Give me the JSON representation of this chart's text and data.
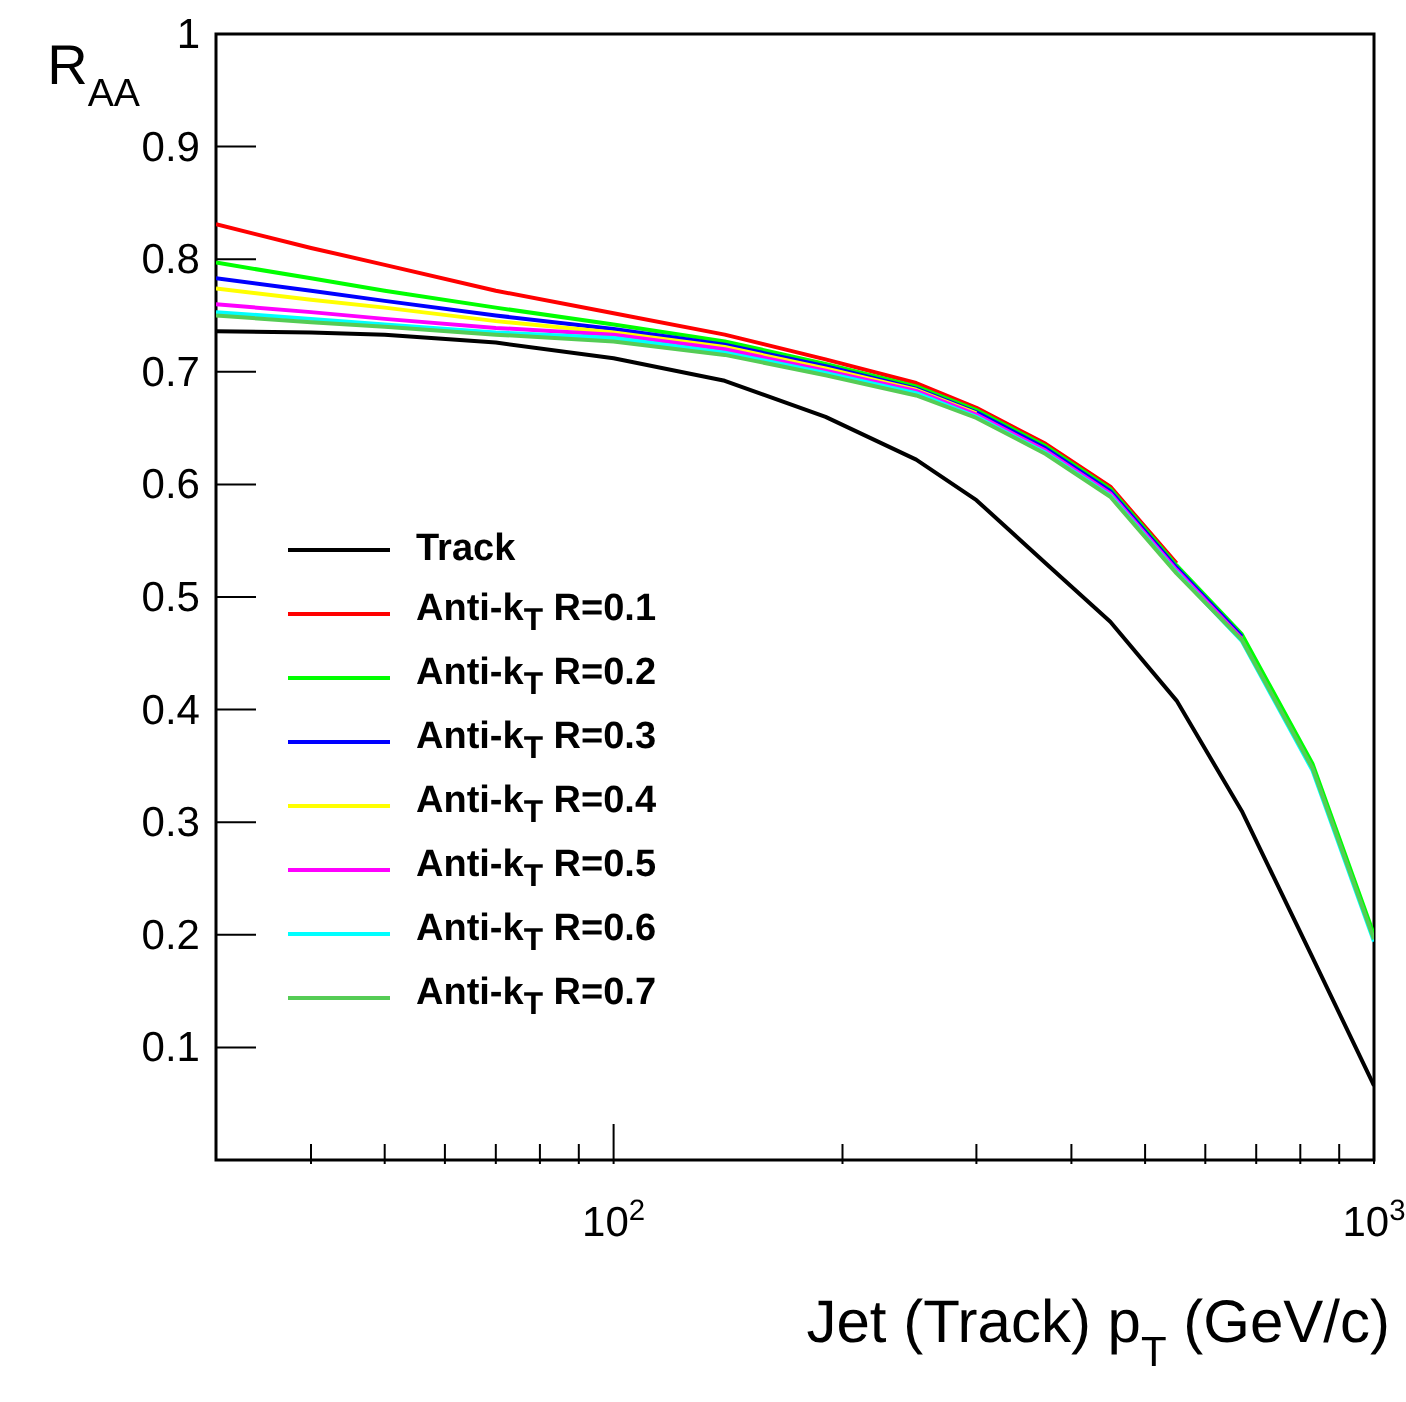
{
  "chart_data": {
    "type": "line",
    "xlabel": "Jet (Track) p$_{T}$ (GeV/c)",
    "ylabel": "R$_{AA}$",
    "log": "x",
    "legend": "bottom left",
    "line_style": "solid",
    "marker": "none",
    "x": [
      30,
      40,
      50,
      70,
      100,
      140,
      190,
      250,
      300,
      370,
      450,
      550,
      670,
      830,
      1000
    ],
    "xlim": [
      30,
      1000
    ],
    "xticks": [
      {
        "value": 40,
        "label": null
      },
      {
        "value": 50,
        "label": null
      },
      {
        "value": 60,
        "label": null
      },
      {
        "value": 70,
        "label": null
      },
      {
        "value": 80,
        "label": null
      },
      {
        "value": 90,
        "label": null
      },
      {
        "value": 100,
        "label": "10$^{2}$"
      },
      {
        "value": 200,
        "label": null
      },
      {
        "value": 300,
        "label": null
      },
      {
        "value": 400,
        "label": null
      },
      {
        "value": 500,
        "label": null
      },
      {
        "value": 600,
        "label": null
      },
      {
        "value": 700,
        "label": null
      },
      {
        "value": 800,
        "label": null
      },
      {
        "value": 900,
        "label": null
      },
      {
        "value": 1000,
        "label": "10$^{3}$"
      }
    ],
    "ylim": [
      0,
      1
    ],
    "yticks": [
      0.1,
      0.2,
      0.3,
      0.4,
      0.5,
      0.6,
      0.7,
      0.8,
      0.9,
      1
    ],
    "series": [
      {
        "name": "Track",
        "color": "#000000",
        "values": [
          0.736,
          0.735,
          0.733,
          0.726,
          0.712,
          0.692,
          0.66,
          0.622,
          0.586,
          0.53,
          0.478,
          0.408,
          0.31,
          0.18,
          0.066
        ]
      },
      {
        "name": "Anti-k$_{T}$ R=0.1",
        "color": "#ff0000",
        "values": [
          0.831,
          0.81,
          0.795,
          0.772,
          0.752,
          0.733,
          0.711,
          0.69,
          0.668,
          0.636,
          0.598,
          0.53,
          null,
          null,
          null
        ]
      },
      {
        "name": "Anti-k$_{T}$ R=0.2",
        "color": "#00ff00",
        "values": [
          0.797,
          0.783,
          0.772,
          0.757,
          0.742,
          0.727,
          0.707,
          0.687,
          0.666,
          0.634,
          0.596,
          0.528,
          0.467,
          0.352,
          0.2
        ]
      },
      {
        "name": "Anti-k$_{T}$ R=0.3",
        "color": "#0000ff",
        "values": [
          0.783,
          0.772,
          0.763,
          0.75,
          0.738,
          0.724,
          0.705,
          0.685,
          0.664,
          0.632,
          0.594,
          0.526,
          0.465,
          null,
          null
        ]
      },
      {
        "name": "Anti-k$_{T}$ R=0.4",
        "color": "#ffff00",
        "values": [
          0.774,
          0.764,
          0.757,
          0.745,
          0.735,
          0.722,
          0.703,
          0.684,
          0.663,
          null,
          null,
          null,
          null,
          null,
          null
        ]
      },
      {
        "name": "Anti-k$_{T}$ R=0.5",
        "color": "#ff00ff",
        "values": [
          0.76,
          0.753,
          0.747,
          0.739,
          0.733,
          0.72,
          0.701,
          0.683,
          0.662,
          0.63,
          0.592,
          0.524,
          0.463,
          null,
          null
        ]
      },
      {
        "name": "Anti-k$_{T}$ R=0.6",
        "color": "#00ffff",
        "values": [
          0.753,
          0.747,
          0.742,
          0.735,
          0.73,
          0.717,
          0.699,
          0.681,
          0.66,
          0.628,
          0.59,
          0.522,
          0.461,
          0.346,
          0.194
        ]
      },
      {
        "name": "Anti-k$_{T}$ R=0.7",
        "color": "#55cc55",
        "values": [
          0.75,
          0.744,
          0.74,
          0.733,
          0.727,
          0.715,
          0.697,
          0.679,
          0.659,
          0.627,
          0.589,
          0.521,
          0.462,
          0.348,
          0.196
        ]
      }
    ]
  }
}
